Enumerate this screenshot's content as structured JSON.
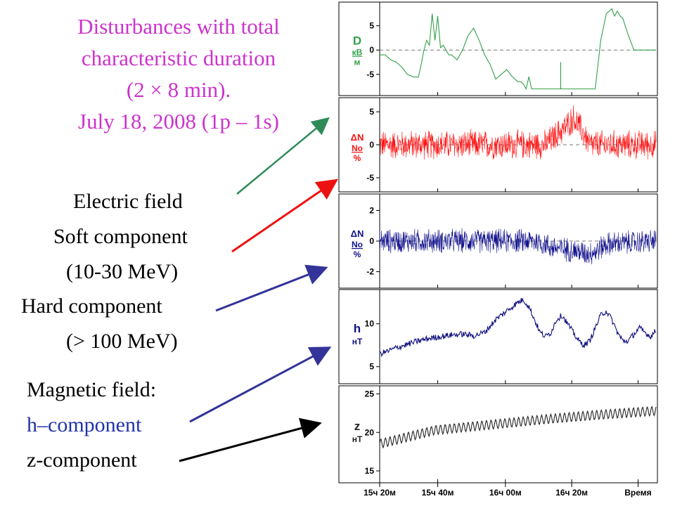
{
  "title": {
    "line1": "Disturbances with total",
    "line2": "characteristic duration",
    "line3": "(2 × 8 min).",
    "line4": "July 18, 2008 (1p – 1s)"
  },
  "labels": {
    "electric_field": "Electric field",
    "soft_component": "Soft component",
    "soft_range": "(10-30 MeV)",
    "hard_component": "Hard component",
    "hard_range": "(> 100 MeV)",
    "magnetic_field": "Magnetic field:",
    "h_component": "h–component",
    "z_component": "z-component"
  },
  "colors": {
    "title": "#cc33cc",
    "electric": "#33a04a",
    "soft": "#ff1010",
    "hard": "#10108c",
    "h_field": "#101080",
    "z_field": "#222222",
    "arrow_electric": "#2e8b57",
    "arrow_soft": "#ee1111",
    "arrow_hard": "#333399",
    "arrow_h": "#333399",
    "arrow_z": "#000000"
  },
  "chart_data": [
    {
      "type": "line",
      "panel": "D",
      "ylabel": "D",
      "yunit_top": "кВ",
      "yunit_bottom": "м",
      "yticks": [
        5,
        0,
        -5
      ],
      "ylim": [
        -8.5,
        9
      ],
      "zero_line": true,
      "x": [
        0,
        2,
        4,
        6,
        8,
        10,
        12,
        14,
        15,
        16,
        17,
        18,
        19,
        20,
        21,
        22,
        23,
        24,
        25,
        26,
        28,
        30,
        32,
        34,
        36,
        38,
        40,
        42,
        44,
        46,
        48,
        50,
        51,
        52,
        53,
        54,
        55,
        56,
        57,
        58,
        60,
        62,
        64,
        66,
        68,
        70,
        72,
        74,
        76,
        78,
        80,
        82,
        84,
        85,
        86,
        87,
        88,
        90,
        92,
        94,
        96,
        98,
        100
      ],
      "values": [
        -1,
        -1,
        -2,
        -2.5,
        -3.5,
        -5,
        -5.5,
        -5.6,
        -3,
        0,
        2,
        1,
        7.5,
        2,
        7,
        0.5,
        1,
        0,
        -1,
        -1,
        -2,
        0,
        3,
        4.5,
        2,
        -1,
        -3,
        -6,
        -5,
        -4,
        -5.5,
        -6.5,
        -6.5,
        -7,
        -8,
        -5.5,
        -8,
        -8,
        -8,
        -8,
        -8,
        -8,
        -8,
        -8,
        -8,
        -8,
        -8,
        -8,
        -8,
        -8,
        2,
        7.5,
        8.5,
        7,
        8,
        7,
        6.5,
        3,
        0,
        0,
        0,
        0,
        0
      ]
    },
    {
      "type": "line",
      "panel": "soft",
      "ylabel": "ΔN",
      "yunit_top": "No",
      "yunit_bottom": "%",
      "yticks": [
        5,
        0,
        -5
      ],
      "ylim": [
        -6.5,
        6.5
      ],
      "zero_line": true,
      "trend_x": [
        0,
        60,
        64,
        68,
        70,
        72,
        76,
        100
      ],
      "trend_values": [
        0,
        0,
        1.5,
        3,
        4,
        3,
        0,
        0
      ],
      "noise_amplitude": 2.5
    },
    {
      "type": "line",
      "panel": "hard",
      "ylabel": "ΔN",
      "yunit_top": "No",
      "yunit_bottom": "%",
      "yticks": [
        2,
        0,
        -2
      ],
      "ylim": [
        -2.8,
        2.8
      ],
      "zero_line": true,
      "trend_x": [
        0,
        56,
        60,
        62,
        70,
        75,
        78,
        82,
        100
      ],
      "trend_values": [
        0,
        0,
        -0.2,
        -0.4,
        -0.6,
        -0.8,
        -0.7,
        -0.2,
        0
      ],
      "noise_amplitude": 0.9
    },
    {
      "type": "line",
      "panel": "h",
      "ylabel": "h",
      "yunit_bottom": "нТ",
      "yticks": [
        10,
        5
      ],
      "ylim": [
        3.5,
        13.5
      ],
      "x": [
        0,
        3,
        6,
        10,
        14,
        18,
        22,
        26,
        30,
        34,
        38,
        42,
        46,
        50,
        52,
        54,
        56,
        58,
        60,
        62,
        64,
        66,
        68,
        70,
        72,
        74,
        76,
        78,
        80,
        82,
        84,
        86,
        88,
        90,
        92,
        94,
        96,
        98,
        100
      ],
      "values": [
        6.5,
        6.8,
        7.2,
        7.6,
        8.0,
        8.3,
        8.5,
        8.7,
        8.8,
        8.6,
        9.0,
        10.5,
        11.5,
        12.5,
        12.8,
        12.0,
        10.5,
        9.0,
        8.5,
        9.0,
        10.5,
        11.0,
        10.0,
        9.0,
        8.0,
        7.5,
        8.0,
        9.5,
        11.0,
        11.5,
        10.5,
        9.0,
        8.0,
        8.0,
        8.8,
        9.5,
        9.0,
        8.5,
        9.2
      ],
      "wiggle_amplitude": 0.35
    },
    {
      "type": "line",
      "panel": "z",
      "ylabel": "z",
      "yunit_bottom": "нТ",
      "yticks": [
        25,
        20,
        15
      ],
      "ylim": [
        14,
        25.5
      ],
      "x": [
        0,
        20,
        40,
        60,
        80,
        100
      ],
      "values": [
        18.5,
        20.3,
        21.0,
        21.7,
        22.3,
        22.8
      ],
      "wiggle_amplitude": 0.6
    }
  ],
  "x_axis": {
    "ticks": [
      {
        "pos": 0,
        "label": "15ч 20м"
      },
      {
        "pos": 0.21,
        "label": "15ч 40м"
      },
      {
        "pos": 0.455,
        "label": "16ч 00м"
      },
      {
        "pos": 0.695,
        "label": "16ч 20м"
      },
      {
        "pos": 0.935,
        "label": "Время"
      }
    ]
  }
}
